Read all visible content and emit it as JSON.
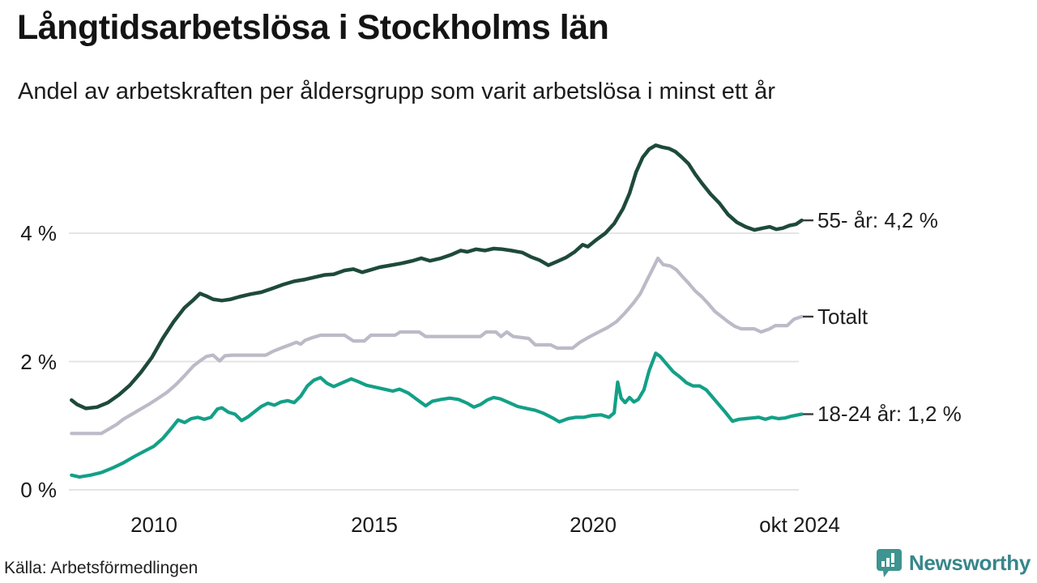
{
  "header": {
    "title": "Långtidsarbetslösa i Stockholms län",
    "subtitle": "Andel av arbetskraften per åldersgrupp som varit arbetslösa i minst ett år"
  },
  "footer": {
    "source": "Källa: Arbetsförmedlingen",
    "brand": "Newsworthy"
  },
  "colors": {
    "series_55": "#1e4a39",
    "series_total": "#bdbac8",
    "series_1824": "#13a087",
    "grid": "#e2e0e5",
    "end_tick": "#3a3a3a",
    "brand_icon": "#3e9490",
    "brand_text": "#37868a"
  },
  "chart_data": {
    "type": "line",
    "title": "Långtidsarbetslösa i Stockholms län",
    "subtitle": "Andel av arbetskraften per åldersgrupp som varit arbetslösa i minst ett år",
    "unit": "%",
    "legend_position": "right-end-labels",
    "grid": "horizontal-only",
    "x_axis": {
      "range": [
        2008.1,
        2024.85
      ],
      "ticks": [
        "2010",
        "2015",
        "2020",
        "okt 2024"
      ],
      "tick_years": [
        2010,
        2015,
        2020,
        2024.78
      ]
    },
    "y_axis": {
      "range": [
        0,
        5.6
      ],
      "ticks": [
        "0 %",
        "2 %",
        "4 %"
      ],
      "tick_values": [
        0,
        2,
        4
      ]
    },
    "series": [
      {
        "name": "55- år",
        "end_label": "55- år: 4,2 %",
        "end_value": "4,2 %",
        "color": "#1e4a39",
        "points": [
          [
            2008.12,
            1.4
          ],
          [
            2008.25,
            1.33
          ],
          [
            2008.45,
            1.27
          ],
          [
            2008.7,
            1.29
          ],
          [
            2008.95,
            1.36
          ],
          [
            2009.2,
            1.48
          ],
          [
            2009.45,
            1.63
          ],
          [
            2009.7,
            1.83
          ],
          [
            2009.95,
            2.06
          ],
          [
            2010.2,
            2.36
          ],
          [
            2010.45,
            2.62
          ],
          [
            2010.7,
            2.84
          ],
          [
            2010.9,
            2.96
          ],
          [
            2011.05,
            3.06
          ],
          [
            2011.2,
            3.02
          ],
          [
            2011.35,
            2.97
          ],
          [
            2011.55,
            2.95
          ],
          [
            2011.75,
            2.97
          ],
          [
            2011.95,
            3.01
          ],
          [
            2012.2,
            3.05
          ],
          [
            2012.45,
            3.08
          ],
          [
            2012.7,
            3.14
          ],
          [
            2012.95,
            3.2
          ],
          [
            2013.2,
            3.25
          ],
          [
            2013.45,
            3.28
          ],
          [
            2013.7,
            3.32
          ],
          [
            2013.9,
            3.35
          ],
          [
            2014.1,
            3.36
          ],
          [
            2014.35,
            3.42
          ],
          [
            2014.55,
            3.44
          ],
          [
            2014.75,
            3.39
          ],
          [
            2014.95,
            3.43
          ],
          [
            2015.15,
            3.47
          ],
          [
            2015.4,
            3.5
          ],
          [
            2015.65,
            3.53
          ],
          [
            2015.9,
            3.57
          ],
          [
            2016.1,
            3.61
          ],
          [
            2016.3,
            3.57
          ],
          [
            2016.55,
            3.61
          ],
          [
            2016.8,
            3.67
          ],
          [
            2017.0,
            3.73
          ],
          [
            2017.15,
            3.71
          ],
          [
            2017.35,
            3.75
          ],
          [
            2017.55,
            3.73
          ],
          [
            2017.75,
            3.76
          ],
          [
            2017.95,
            3.75
          ],
          [
            2018.15,
            3.73
          ],
          [
            2018.4,
            3.7
          ],
          [
            2018.6,
            3.63
          ],
          [
            2018.8,
            3.58
          ],
          [
            2019.0,
            3.5
          ],
          [
            2019.2,
            3.56
          ],
          [
            2019.4,
            3.62
          ],
          [
            2019.6,
            3.71
          ],
          [
            2019.78,
            3.82
          ],
          [
            2019.9,
            3.79
          ],
          [
            2020.1,
            3.9
          ],
          [
            2020.3,
            4.0
          ],
          [
            2020.5,
            4.15
          ],
          [
            2020.7,
            4.38
          ],
          [
            2020.85,
            4.62
          ],
          [
            2021.0,
            4.95
          ],
          [
            2021.15,
            5.18
          ],
          [
            2021.3,
            5.31
          ],
          [
            2021.45,
            5.37
          ],
          [
            2021.6,
            5.34
          ],
          [
            2021.75,
            5.32
          ],
          [
            2021.9,
            5.27
          ],
          [
            2022.05,
            5.18
          ],
          [
            2022.2,
            5.08
          ],
          [
            2022.35,
            4.92
          ],
          [
            2022.5,
            4.78
          ],
          [
            2022.7,
            4.61
          ],
          [
            2022.9,
            4.47
          ],
          [
            2023.1,
            4.29
          ],
          [
            2023.3,
            4.17
          ],
          [
            2023.5,
            4.1
          ],
          [
            2023.7,
            4.05
          ],
          [
            2023.9,
            4.08
          ],
          [
            2024.05,
            4.1
          ],
          [
            2024.2,
            4.06
          ],
          [
            2024.35,
            4.08
          ],
          [
            2024.5,
            4.12
          ],
          [
            2024.65,
            4.14
          ],
          [
            2024.78,
            4.2
          ]
        ]
      },
      {
        "name": "Totalt",
        "end_label": "Totalt",
        "end_value": "",
        "color": "#bdbac8",
        "points": [
          [
            2008.12,
            0.88
          ],
          [
            2008.45,
            0.88
          ],
          [
            2008.8,
            0.88
          ],
          [
            2009.0,
            0.96
          ],
          [
            2009.15,
            1.02
          ],
          [
            2009.3,
            1.1
          ],
          [
            2009.5,
            1.18
          ],
          [
            2009.7,
            1.26
          ],
          [
            2009.9,
            1.34
          ],
          [
            2010.1,
            1.43
          ],
          [
            2010.3,
            1.52
          ],
          [
            2010.5,
            1.64
          ],
          [
            2010.7,
            1.78
          ],
          [
            2010.9,
            1.93
          ],
          [
            2011.05,
            2.01
          ],
          [
            2011.2,
            2.08
          ],
          [
            2011.35,
            2.1
          ],
          [
            2011.5,
            2.01
          ],
          [
            2011.62,
            2.09
          ],
          [
            2011.78,
            2.1
          ],
          [
            2012.3,
            2.1
          ],
          [
            2012.55,
            2.1
          ],
          [
            2012.72,
            2.16
          ],
          [
            2012.9,
            2.21
          ],
          [
            2013.1,
            2.26
          ],
          [
            2013.25,
            2.3
          ],
          [
            2013.35,
            2.27
          ],
          [
            2013.45,
            2.33
          ],
          [
            2013.6,
            2.37
          ],
          [
            2013.8,
            2.41
          ],
          [
            2014.35,
            2.41
          ],
          [
            2014.55,
            2.32
          ],
          [
            2014.8,
            2.32
          ],
          [
            2014.95,
            2.41
          ],
          [
            2015.5,
            2.41
          ],
          [
            2015.62,
            2.46
          ],
          [
            2016.05,
            2.46
          ],
          [
            2016.2,
            2.39
          ],
          [
            2017.45,
            2.39
          ],
          [
            2017.58,
            2.46
          ],
          [
            2017.8,
            2.46
          ],
          [
            2017.92,
            2.39
          ],
          [
            2018.05,
            2.46
          ],
          [
            2018.2,
            2.39
          ],
          [
            2018.55,
            2.36
          ],
          [
            2018.7,
            2.26
          ],
          [
            2019.05,
            2.26
          ],
          [
            2019.2,
            2.21
          ],
          [
            2019.55,
            2.21
          ],
          [
            2019.72,
            2.3
          ],
          [
            2019.95,
            2.39
          ],
          [
            2020.15,
            2.46
          ],
          [
            2020.35,
            2.53
          ],
          [
            2020.55,
            2.62
          ],
          [
            2020.75,
            2.76
          ],
          [
            2020.95,
            2.92
          ],
          [
            2021.1,
            3.06
          ],
          [
            2021.25,
            3.27
          ],
          [
            2021.4,
            3.47
          ],
          [
            2021.5,
            3.61
          ],
          [
            2021.62,
            3.51
          ],
          [
            2021.78,
            3.49
          ],
          [
            2021.92,
            3.43
          ],
          [
            2022.05,
            3.33
          ],
          [
            2022.2,
            3.22
          ],
          [
            2022.35,
            3.1
          ],
          [
            2022.5,
            3.01
          ],
          [
            2022.65,
            2.9
          ],
          [
            2022.8,
            2.78
          ],
          [
            2022.95,
            2.7
          ],
          [
            2023.1,
            2.62
          ],
          [
            2023.25,
            2.55
          ],
          [
            2023.4,
            2.51
          ],
          [
            2023.7,
            2.51
          ],
          [
            2023.85,
            2.46
          ],
          [
            2024.05,
            2.51
          ],
          [
            2024.18,
            2.56
          ],
          [
            2024.45,
            2.56
          ],
          [
            2024.6,
            2.66
          ],
          [
            2024.78,
            2.7
          ]
        ]
      },
      {
        "name": "18-24 år",
        "end_label": "18-24 år: 1,2 %",
        "end_value": "1,2 %",
        "color": "#13a087",
        "points": [
          [
            2008.12,
            0.23
          ],
          [
            2008.3,
            0.2
          ],
          [
            2008.55,
            0.23
          ],
          [
            2008.8,
            0.27
          ],
          [
            2009.05,
            0.34
          ],
          [
            2009.3,
            0.42
          ],
          [
            2009.55,
            0.52
          ],
          [
            2009.8,
            0.61
          ],
          [
            2010.0,
            0.68
          ],
          [
            2010.2,
            0.8
          ],
          [
            2010.4,
            0.96
          ],
          [
            2010.55,
            1.09
          ],
          [
            2010.7,
            1.05
          ],
          [
            2010.85,
            1.11
          ],
          [
            2011.0,
            1.13
          ],
          [
            2011.15,
            1.1
          ],
          [
            2011.3,
            1.13
          ],
          [
            2011.45,
            1.26
          ],
          [
            2011.55,
            1.28
          ],
          [
            2011.7,
            1.21
          ],
          [
            2011.85,
            1.18
          ],
          [
            2012.0,
            1.08
          ],
          [
            2012.15,
            1.14
          ],
          [
            2012.3,
            1.22
          ],
          [
            2012.45,
            1.3
          ],
          [
            2012.6,
            1.35
          ],
          [
            2012.75,
            1.32
          ],
          [
            2012.9,
            1.37
          ],
          [
            2013.05,
            1.39
          ],
          [
            2013.2,
            1.36
          ],
          [
            2013.35,
            1.46
          ],
          [
            2013.5,
            1.62
          ],
          [
            2013.65,
            1.71
          ],
          [
            2013.8,
            1.75
          ],
          [
            2013.95,
            1.66
          ],
          [
            2014.1,
            1.61
          ],
          [
            2014.3,
            1.67
          ],
          [
            2014.5,
            1.73
          ],
          [
            2014.65,
            1.69
          ],
          [
            2014.85,
            1.63
          ],
          [
            2015.05,
            1.6
          ],
          [
            2015.25,
            1.57
          ],
          [
            2015.45,
            1.54
          ],
          [
            2015.6,
            1.57
          ],
          [
            2015.8,
            1.51
          ],
          [
            2016.0,
            1.41
          ],
          [
            2016.2,
            1.31
          ],
          [
            2016.35,
            1.38
          ],
          [
            2016.55,
            1.41
          ],
          [
            2016.75,
            1.43
          ],
          [
            2016.95,
            1.41
          ],
          [
            2017.15,
            1.35
          ],
          [
            2017.3,
            1.29
          ],
          [
            2017.45,
            1.33
          ],
          [
            2017.6,
            1.4
          ],
          [
            2017.75,
            1.44
          ],
          [
            2017.9,
            1.42
          ],
          [
            2018.1,
            1.36
          ],
          [
            2018.3,
            1.3
          ],
          [
            2018.5,
            1.27
          ],
          [
            2018.7,
            1.24
          ],
          [
            2018.9,
            1.19
          ],
          [
            2019.1,
            1.12
          ],
          [
            2019.25,
            1.06
          ],
          [
            2019.45,
            1.11
          ],
          [
            2019.62,
            1.13
          ],
          [
            2019.8,
            1.13
          ],
          [
            2020.0,
            1.16
          ],
          [
            2020.2,
            1.17
          ],
          [
            2020.38,
            1.13
          ],
          [
            2020.5,
            1.2
          ],
          [
            2020.58,
            1.68
          ],
          [
            2020.66,
            1.43
          ],
          [
            2020.75,
            1.36
          ],
          [
            2020.85,
            1.44
          ],
          [
            2020.95,
            1.37
          ],
          [
            2021.05,
            1.41
          ],
          [
            2021.18,
            1.56
          ],
          [
            2021.3,
            1.86
          ],
          [
            2021.45,
            2.13
          ],
          [
            2021.55,
            2.08
          ],
          [
            2021.7,
            1.96
          ],
          [
            2021.85,
            1.84
          ],
          [
            2022.0,
            1.76
          ],
          [
            2022.15,
            1.67
          ],
          [
            2022.3,
            1.62
          ],
          [
            2022.45,
            1.62
          ],
          [
            2022.6,
            1.56
          ],
          [
            2022.75,
            1.44
          ],
          [
            2022.9,
            1.32
          ],
          [
            2023.05,
            1.2
          ],
          [
            2023.2,
            1.07
          ],
          [
            2023.35,
            1.1
          ],
          [
            2023.5,
            1.11
          ],
          [
            2023.65,
            1.12
          ],
          [
            2023.8,
            1.13
          ],
          [
            2023.95,
            1.1
          ],
          [
            2024.1,
            1.13
          ],
          [
            2024.25,
            1.11
          ],
          [
            2024.4,
            1.12
          ],
          [
            2024.55,
            1.15
          ],
          [
            2024.7,
            1.17
          ],
          [
            2024.78,
            1.18
          ]
        ]
      }
    ]
  }
}
